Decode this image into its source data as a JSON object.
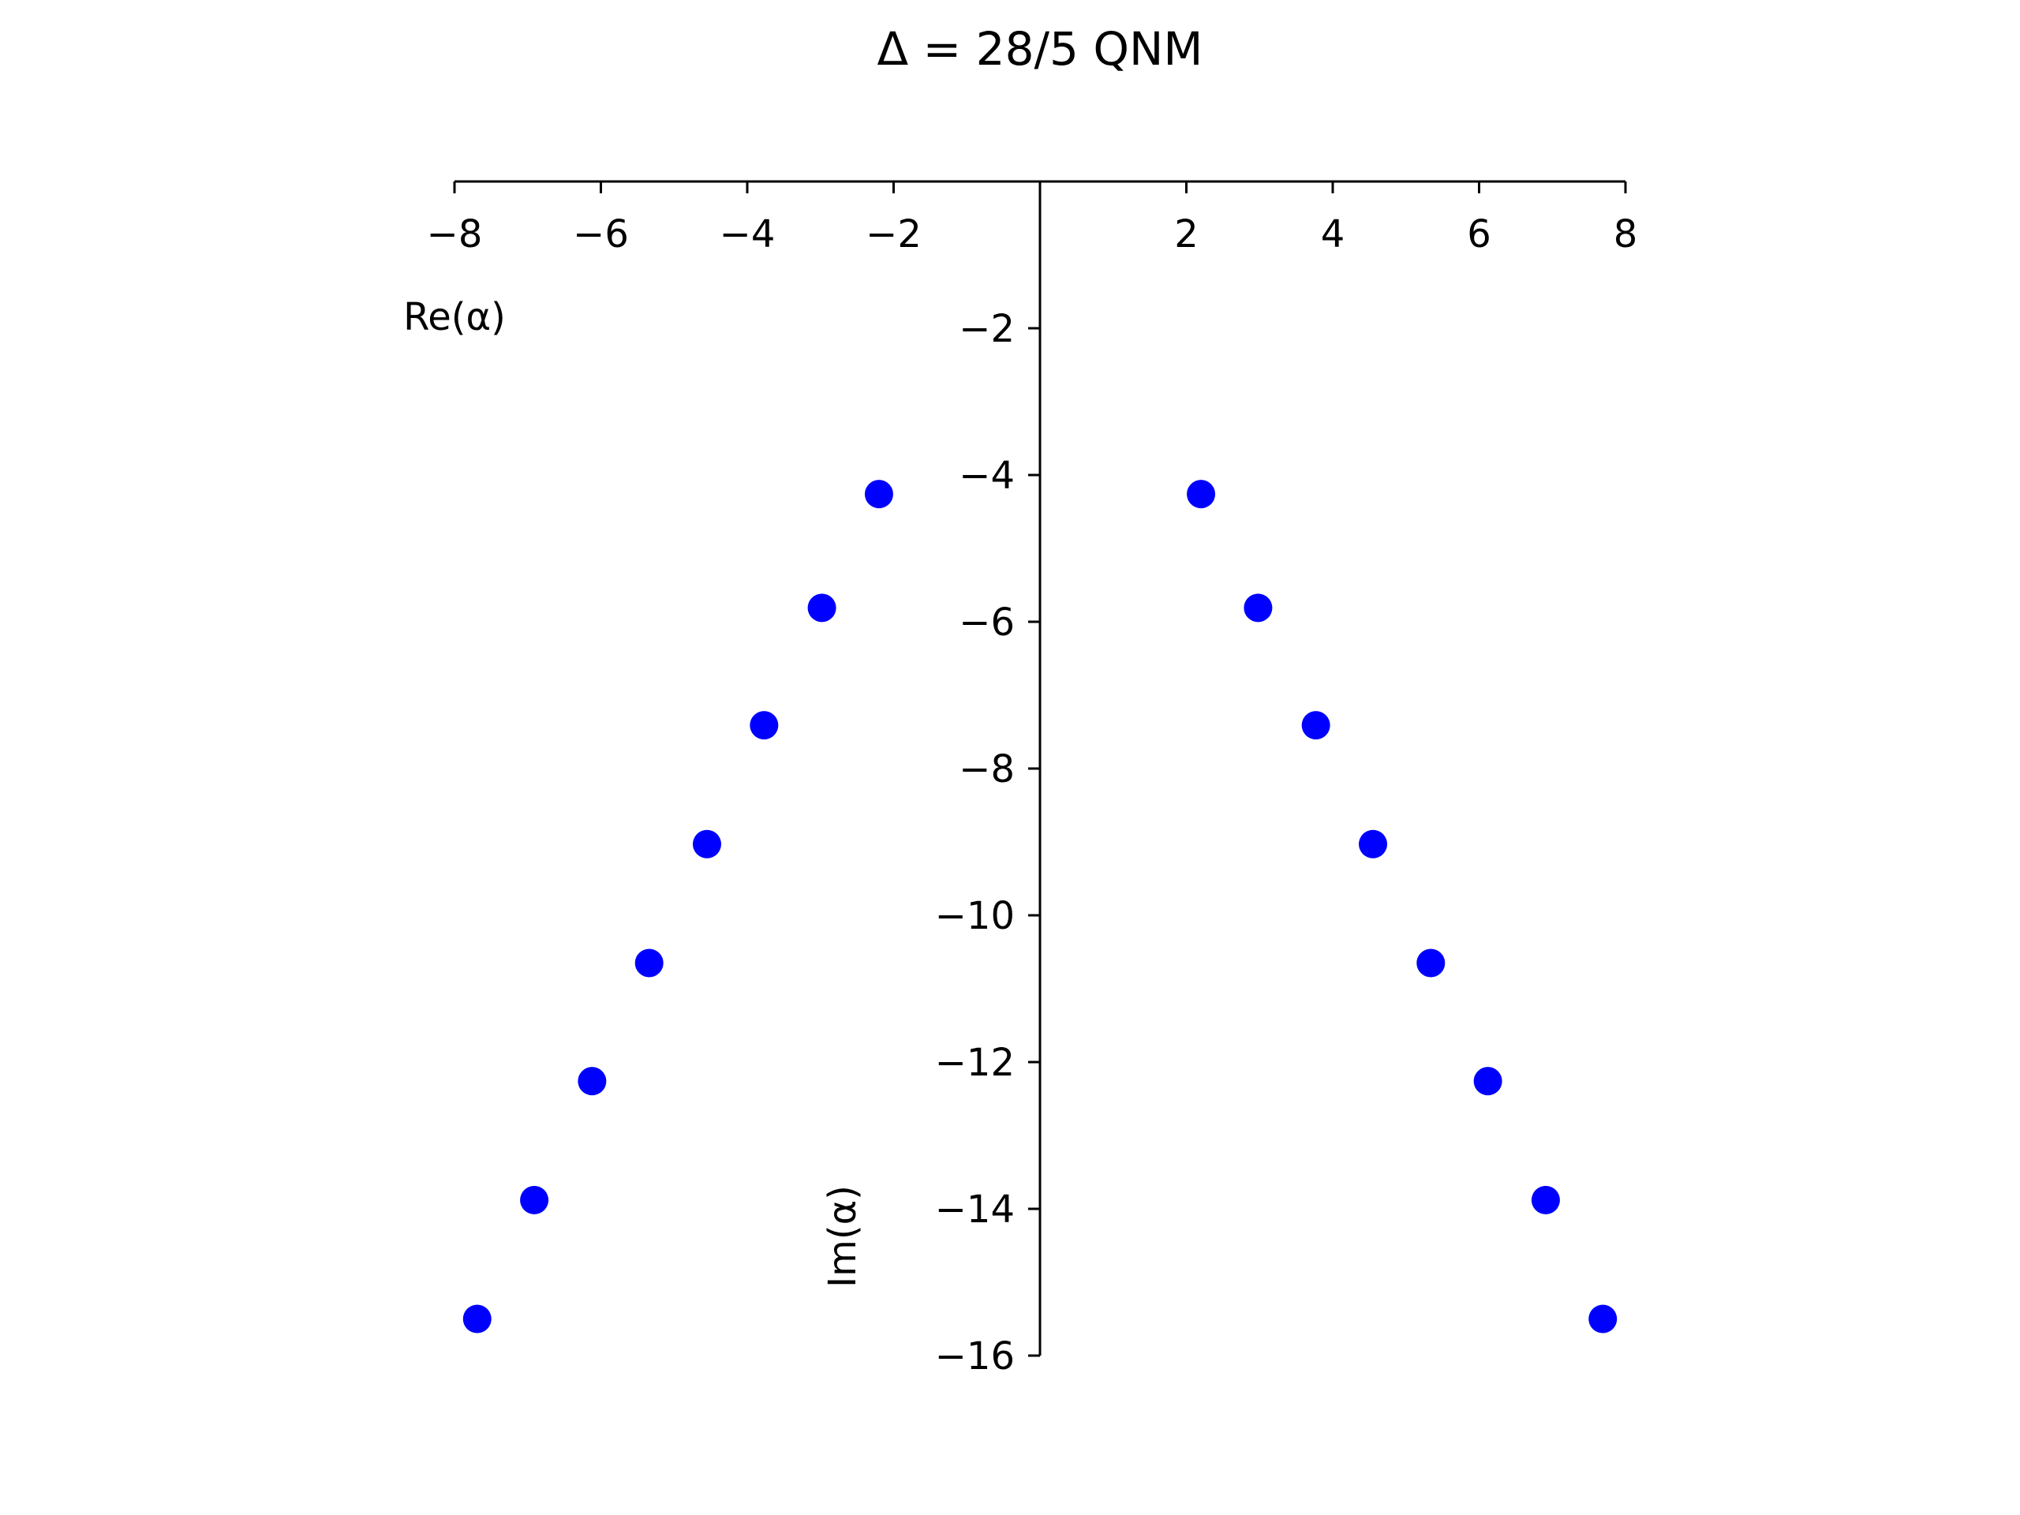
{
  "chart_data": {
    "type": "scatter",
    "title": "Δ = 28/5 QNM",
    "xlabel": "Re(α)",
    "ylabel": "Im(α)",
    "xlim": [
      -8,
      8
    ],
    "ylim": [
      -16,
      0
    ],
    "xticks": [
      -8,
      -6,
      -4,
      -2,
      2,
      4,
      6,
      8
    ],
    "yticks": [
      -2,
      -4,
      -6,
      -8,
      -10,
      -12,
      -14,
      -16
    ],
    "grid": false,
    "marker_color": "#0000ff",
    "axis_color": "#000000",
    "series": [
      {
        "x": [
          -2.2,
          -2.98,
          -3.77,
          -4.55,
          -5.34,
          -6.12,
          -6.91,
          -7.69,
          2.2,
          2.98,
          3.77,
          4.55,
          5.34,
          6.12,
          6.91,
          7.69
        ],
        "y": [
          -4.26,
          -5.81,
          -7.41,
          -9.03,
          -10.65,
          -12.26,
          -13.88,
          -15.5,
          -4.26,
          -5.81,
          -7.41,
          -9.03,
          -10.65,
          -12.26,
          -13.88,
          -15.5
        ]
      }
    ]
  }
}
